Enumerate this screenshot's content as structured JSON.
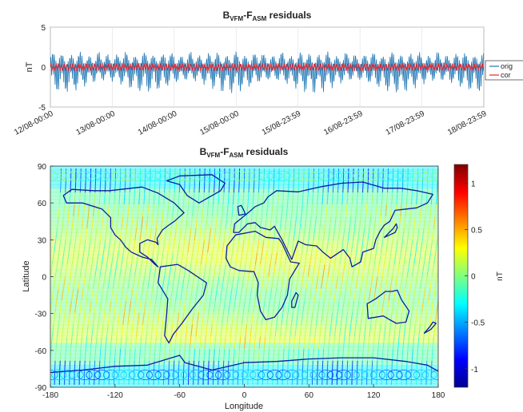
{
  "chart_data": [
    {
      "type": "line",
      "title": {
        "base": "B",
        "sub1": "VFM",
        "mid": "-F",
        "sub2": "ASM",
        "tail": " residuals"
      },
      "ylabel": "nT",
      "ylim": [
        -5,
        5
      ],
      "yticks": [
        "5",
        "0",
        "-5"
      ],
      "yticks_values": [
        5,
        0,
        -5
      ],
      "xticks": [
        "12/08-00:00",
        "13/08-00:00",
        "14/08-00:00",
        "15/08-00:00",
        "15/08-23:59",
        "16/08-23:59",
        "17/08-23:59",
        "18/08-23:59"
      ],
      "grid": true,
      "legend_position": "right, clipped",
      "series": [
        {
          "name": "orig",
          "color": "#1f77b4",
          "amplitude_nT": [
            -3.5,
            2.0
          ],
          "description_mean": 0
        },
        {
          "name": "cor",
          "color": "#e8202a",
          "amplitude_nT": [
            -0.5,
            0.5
          ],
          "description_mean": 0
        }
      ]
    },
    {
      "type": "heatmap",
      "title": {
        "base": "B",
        "sub1": "VFM",
        "mid": "-F",
        "sub2": "ASM",
        "tail": " residuals"
      },
      "xlabel": "Longitude",
      "ylabel": "Latitude",
      "xlim": [
        -180,
        180
      ],
      "ylim": [
        -90,
        90
      ],
      "xticks": [
        "-180",
        "-120",
        "-60",
        "0",
        "60",
        "120",
        "180"
      ],
      "yticks": [
        "90",
        "60",
        "30",
        "0",
        "-30",
        "-60",
        "-90"
      ],
      "colorbar": {
        "label": "nT",
        "range": [
          -1.2,
          1.2
        ],
        "ticks": [
          "1",
          "0.5",
          "0",
          "-0.5",
          "-1"
        ],
        "ticks_values": [
          1,
          0.5,
          0,
          -0.5,
          -1
        ]
      },
      "coastline_color": "#0a1fa0"
    }
  ]
}
